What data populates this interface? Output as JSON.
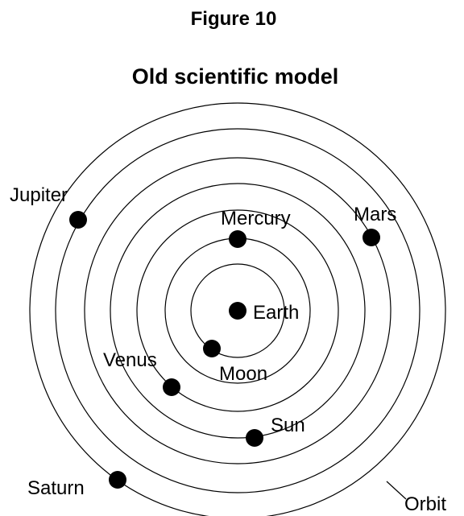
{
  "figure": "Figure 10",
  "title": "Old scientific model",
  "bodies": [
    {
      "label": "Earth"
    },
    {
      "label": "Moon"
    },
    {
      "label": "Mercury"
    },
    {
      "label": "Venus"
    },
    {
      "label": "Sun"
    },
    {
      "label": "Mars"
    },
    {
      "label": "Jupiter"
    },
    {
      "label": "Saturn"
    }
  ],
  "orbit_label": "Orbit"
}
